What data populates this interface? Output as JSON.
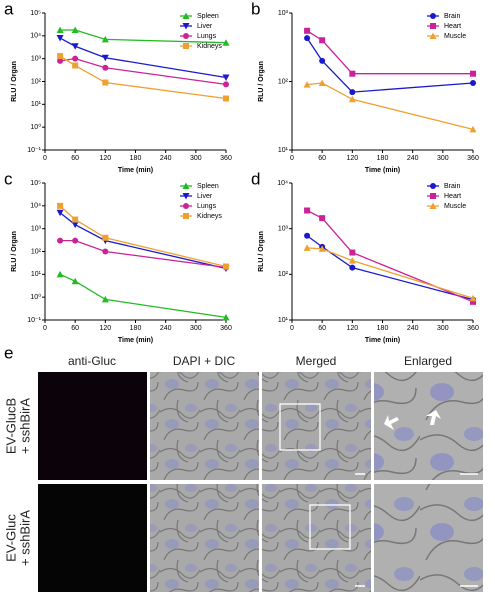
{
  "chart_data": [
    {
      "type": "line",
      "panel": "a",
      "x_label": "Time (min)",
      "y_label": "RLU / Organ",
      "log_y": true,
      "legend": "upper right",
      "x": [
        30,
        60,
        120,
        360
      ],
      "xlim": [
        0,
        360
      ],
      "xticks": [
        0,
        60,
        120,
        180,
        240,
        300,
        360
      ],
      "ylim": [
        0.1,
        100000
      ],
      "yticks": [
        {
          "value": 0.1,
          "label": "10⁻¹"
        },
        {
          "value": 1,
          "label": "10⁰"
        },
        {
          "value": 10,
          "label": "10¹"
        },
        {
          "value": 100,
          "label": "10²"
        },
        {
          "value": 1000,
          "label": "10³"
        },
        {
          "value": 10000,
          "label": "10⁴"
        },
        {
          "value": 100000,
          "label": "10⁵"
        }
      ],
      "series": [
        {
          "name": "Spleen",
          "color": "#22bb22",
          "marker": "triangle",
          "values": [
            18000,
            18000,
            7000,
            5000
          ]
        },
        {
          "name": "Liver",
          "color": "#1a1acc",
          "marker": "triangle-down",
          "values": [
            8000,
            3500,
            1100,
            150
          ]
        },
        {
          "name": "Lungs",
          "color": "#cc2299",
          "marker": "circle",
          "values": [
            800,
            1000,
            400,
            75
          ]
        },
        {
          "name": "Kidneys",
          "color": "#f0a030",
          "marker": "square",
          "values": [
            1300,
            500,
            90,
            18
          ]
        }
      ]
    },
    {
      "type": "line",
      "panel": "b",
      "x_label": "Time (min)",
      "y_label": "RLU / Organ",
      "log_y": true,
      "legend": "upper right",
      "x": [
        30,
        60,
        120,
        360
      ],
      "xlim": [
        0,
        360
      ],
      "xticks": [
        0,
        60,
        120,
        180,
        240,
        300,
        360
      ],
      "ylim": [
        10,
        1000
      ],
      "yticks": [
        {
          "value": 10,
          "label": "10¹"
        },
        {
          "value": 100,
          "label": "10²"
        },
        {
          "value": 1000,
          "label": "10³"
        }
      ],
      "series": [
        {
          "name": "Brain",
          "color": "#1a1acc",
          "marker": "circle",
          "values": [
            430,
            200,
            70,
            95
          ]
        },
        {
          "name": "Heart",
          "color": "#cc2299",
          "marker": "square",
          "values": [
            550,
            400,
            130,
            130
          ]
        },
        {
          "name": "Muscle",
          "color": "#f0a030",
          "marker": "triangle",
          "values": [
            90,
            95,
            55,
            20
          ]
        }
      ]
    },
    {
      "type": "line",
      "panel": "c",
      "x_label": "Time (min)",
      "y_label": "RLU / Organ",
      "log_y": true,
      "legend": "upper right",
      "x": [
        30,
        60,
        120,
        360
      ],
      "xlim": [
        0,
        360
      ],
      "xticks": [
        0,
        60,
        120,
        180,
        240,
        300,
        360
      ],
      "ylim": [
        0.1,
        100000
      ],
      "yticks": [
        {
          "value": 0.1,
          "label": "10⁻¹"
        },
        {
          "value": 1,
          "label": "10⁰"
        },
        {
          "value": 10,
          "label": "10¹"
        },
        {
          "value": 100,
          "label": "10²"
        },
        {
          "value": 1000,
          "label": "10³"
        },
        {
          "value": 10000,
          "label": "10⁴"
        },
        {
          "value": 100000,
          "label": "10⁵"
        }
      ],
      "series": [
        {
          "name": "Spleen",
          "color": "#22bb22",
          "marker": "triangle",
          "values": [
            10,
            5,
            0.8,
            0.13
          ]
        },
        {
          "name": "Liver",
          "color": "#1a1acc",
          "marker": "triangle-down",
          "values": [
            5000,
            1500,
            300,
            18
          ]
        },
        {
          "name": "Lungs",
          "color": "#cc2299",
          "marker": "circle",
          "values": [
            300,
            300,
            100,
            20
          ]
        },
        {
          "name": "Kidneys",
          "color": "#f0a030",
          "marker": "square",
          "values": [
            10000,
            2500,
            400,
            22
          ]
        }
      ]
    },
    {
      "type": "line",
      "panel": "d",
      "x_label": "Time (min)",
      "y_label": "RLU / Organ",
      "log_y": true,
      "legend": "upper right",
      "x": [
        30,
        60,
        120,
        360
      ],
      "xlim": [
        0,
        360
      ],
      "xticks": [
        0,
        60,
        120,
        180,
        240,
        300,
        360
      ],
      "ylim": [
        10,
        10000
      ],
      "yticks": [
        {
          "value": 10,
          "label": "10¹"
        },
        {
          "value": 100,
          "label": "10²"
        },
        {
          "value": 1000,
          "label": "10³"
        },
        {
          "value": 10000,
          "label": "10⁴"
        }
      ],
      "series": [
        {
          "name": "Brain",
          "color": "#1a1acc",
          "marker": "circle",
          "values": [
            700,
            400,
            140,
            28
          ]
        },
        {
          "name": "Heart",
          "color": "#cc2299",
          "marker": "square",
          "values": [
            2500,
            1700,
            300,
            25
          ]
        },
        {
          "name": "Muscle",
          "color": "#f0a030",
          "marker": "triangle",
          "values": [
            380,
            360,
            200,
            30
          ]
        }
      ]
    }
  ],
  "panel_e": {
    "label": "e",
    "columns": [
      "anti-Gluc",
      "DAPI + DIC",
      "Merged",
      "Enlarged"
    ],
    "rows": [
      [
        "EV-GlucB",
        "+ sshBirA"
      ],
      [
        "EV-Gluc",
        "+ sshBirA"
      ]
    ]
  }
}
